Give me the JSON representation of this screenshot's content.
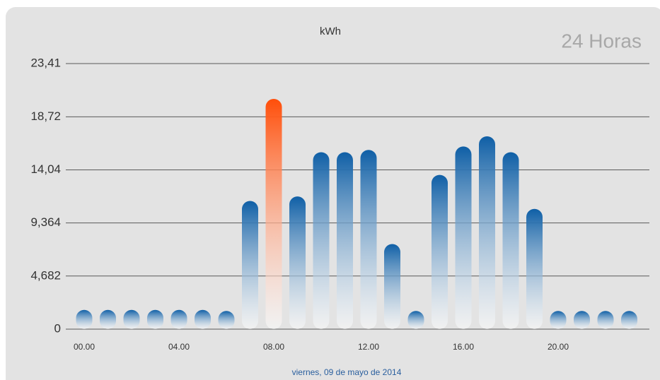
{
  "chart_data": {
    "type": "bar",
    "title": "kWh",
    "corner_label": "24 Horas",
    "x_label": "viernes, 09 de mayo de 2014",
    "categories": [
      "00.00",
      null,
      null,
      null,
      "04.00",
      null,
      null,
      null,
      "08.00",
      null,
      null,
      null,
      "12.00",
      null,
      null,
      null,
      "16.00",
      null,
      null,
      null,
      "20.00",
      null,
      null,
      null
    ],
    "values": [
      1.7,
      1.7,
      1.7,
      1.7,
      1.7,
      1.7,
      1.6,
      11.3,
      20.3,
      11.7,
      15.6,
      15.6,
      15.8,
      7.5,
      1.6,
      13.6,
      16.1,
      17.0,
      15.6,
      10.6,
      1.6,
      1.6,
      1.6,
      1.6
    ],
    "colors": [
      "#0f5fa6",
      "#0f5fa6",
      "#0f5fa6",
      "#0f5fa6",
      "#0f5fa6",
      "#0f5fa6",
      "#0f5fa6",
      "#0f5fa6",
      "#ff4e0a",
      "#0f5fa6",
      "#0f5fa6",
      "#0f5fa6",
      "#0f5fa6",
      "#0f5fa6",
      "#0f5fa6",
      "#0f5fa6",
      "#0f5fa6",
      "#0f5fa6",
      "#0f5fa6",
      "#0f5fa6",
      "#0f5fa6",
      "#0f5fa6",
      "#0f5fa6",
      "#0f5fa6"
    ],
    "ylim": [
      0,
      23.41
    ],
    "yticks": [
      0,
      {
        "value": 4.682,
        "label": "4,682"
      },
      {
        "value": 9.364,
        "label": "9,364"
      },
      {
        "value": 14.04,
        "label": "14,04"
      },
      {
        "value": 18.72,
        "label": "18,72"
      },
      {
        "value": 23.41,
        "label": "23,41"
      }
    ],
    "grid": true
  }
}
